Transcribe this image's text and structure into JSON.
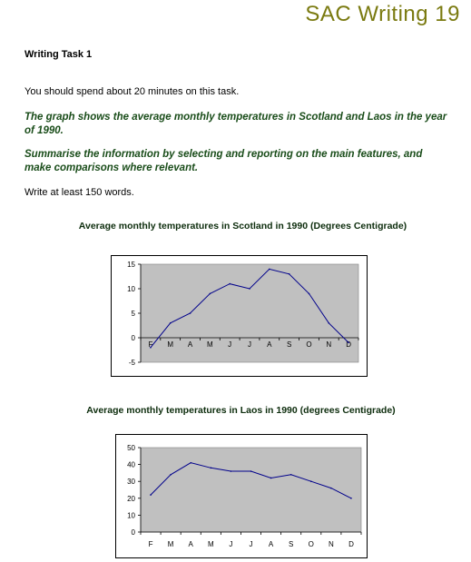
{
  "header": {
    "title": "SAC Writing 19"
  },
  "task": {
    "heading": "Writing Task 1",
    "instruction": "You should spend about 20 minutes on this task.",
    "prompt_1": "The graph shows the average monthly temperatures in Scotland and Laos in the year of 1990.",
    "prompt_2": "Summarise the information by selecting and reporting on the main features, and make comparisons where relevant.",
    "min_words": "Write at least 150 words."
  },
  "colors": {
    "header": "#7a7a10",
    "prompt": "#1a4d1a",
    "plot_area": "#c0c0c0",
    "line": "#00008b"
  },
  "chart_data": [
    {
      "type": "line",
      "title": "Average monthly temperatures in Scotland in 1990 (Degrees Centigrade)",
      "categories": [
        "F",
        "M",
        "A",
        "M",
        "J",
        "J",
        "A",
        "S",
        "O",
        "N",
        "D"
      ],
      "values": [
        -2,
        3,
        5,
        9,
        11,
        10,
        14,
        13,
        9,
        3,
        -1
      ],
      "yticks": [
        "15",
        "10",
        "5",
        "0",
        "-5"
      ],
      "ylim": [
        -5,
        15
      ],
      "grid": false
    },
    {
      "type": "line",
      "title": "Average monthly temperatures in Laos in 1990 (degrees Centigrade)",
      "categories": [
        "F",
        "M",
        "A",
        "M",
        "J",
        "J",
        "A",
        "S",
        "O",
        "N",
        "D"
      ],
      "values": [
        22,
        34,
        41,
        38,
        36,
        36,
        32,
        34,
        30,
        26,
        20
      ],
      "yticks": [
        "50",
        "40",
        "30",
        "20",
        "10",
        "0"
      ],
      "ylim": [
        0,
        50
      ],
      "grid": false
    }
  ]
}
